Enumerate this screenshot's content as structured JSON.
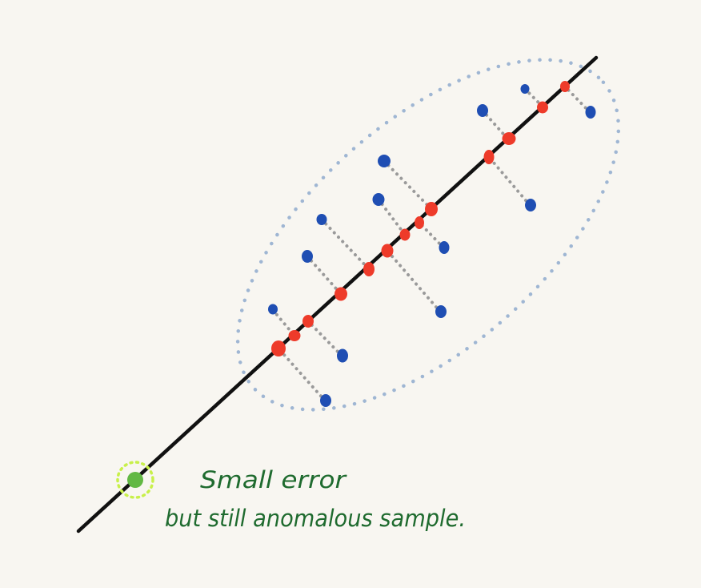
{
  "annotation": {
    "line1": "Small error",
    "line2": "but still anomalous sample."
  },
  "colors": {
    "background": "#f8f6f1",
    "principal_line": "#111111",
    "original_point": "#1f4eb3",
    "projected_point": "#ee3b2a",
    "projection_connector": "#9a9a9a",
    "cluster_boundary": "#9fb6d3",
    "anomaly_point": "#62b844",
    "anomaly_halo": "#c8f04a",
    "annotation_text": "#1f6b2f"
  }
}
